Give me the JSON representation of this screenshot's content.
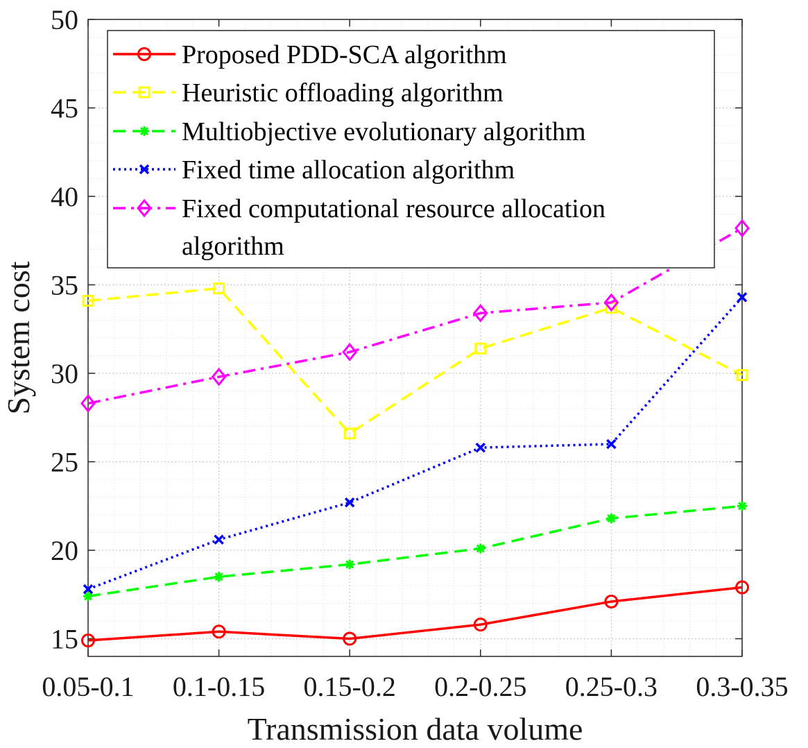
{
  "chart_data": {
    "type": "line",
    "title": "",
    "xlabel": "Transmission data volume",
    "ylabel": "System cost",
    "categories": [
      "0.05-0.1",
      "0.1-0.15",
      "0.15-0.2",
      "0.2-0.25",
      "0.25-0.3",
      "0.3-0.35"
    ],
    "ylim": [
      14,
      50
    ],
    "yticks": [
      15,
      20,
      25,
      30,
      35,
      40,
      45,
      50
    ],
    "grid": true,
    "legend_position": "top-left",
    "series": [
      {
        "name": "Proposed PDD-SCA algorithm",
        "legend_lines": [
          "Proposed PDD-SCA algorithm"
        ],
        "values": [
          14.9,
          15.4,
          15.0,
          15.8,
          17.1,
          17.9
        ],
        "color": "#ff0000",
        "dash": "solid",
        "marker": "circle"
      },
      {
        "name": "Heuristic offloading algorithm",
        "legend_lines": [
          "Heuristic offloading algorithm"
        ],
        "values": [
          34.1,
          34.8,
          26.6,
          31.4,
          33.7,
          29.9
        ],
        "color": "#ffff00",
        "dash": "dashed",
        "marker": "square"
      },
      {
        "name": "Multiobjective evolutionary algorithm",
        "legend_lines": [
          "Multiobjective evolutionary algorithm"
        ],
        "values": [
          17.4,
          18.5,
          19.2,
          20.1,
          21.8,
          22.5
        ],
        "color": "#00ff00",
        "dash": "dashed",
        "marker": "asterisk"
      },
      {
        "name": "Fixed time allocation algorithm",
        "legend_lines": [
          "Fixed time allocation algorithm"
        ],
        "values": [
          17.8,
          20.6,
          22.7,
          25.8,
          26.0,
          34.3
        ],
        "color": "#0000ff",
        "dash": "dotted",
        "marker": "x"
      },
      {
        "name": "Fixed computational resource allocation algorithm",
        "legend_lines": [
          "Fixed computational resource allocation",
          "algorithm"
        ],
        "values": [
          28.3,
          29.8,
          31.2,
          33.4,
          34.0,
          38.2
        ],
        "color": "#ff00ff",
        "dash": "dashdot",
        "marker": "diamond"
      }
    ]
  }
}
